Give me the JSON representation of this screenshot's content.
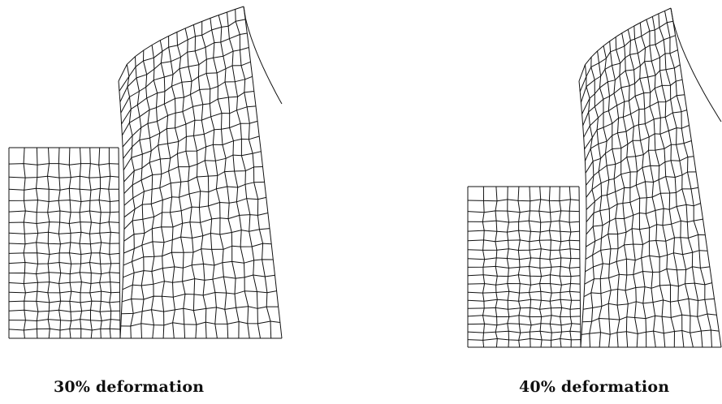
{
  "figure": {
    "panels": [
      {
        "caption": "30% deformation"
      },
      {
        "caption": "40% deformation"
      }
    ],
    "colors": {
      "mesh": "#111111",
      "background": "#ffffff"
    }
  }
}
